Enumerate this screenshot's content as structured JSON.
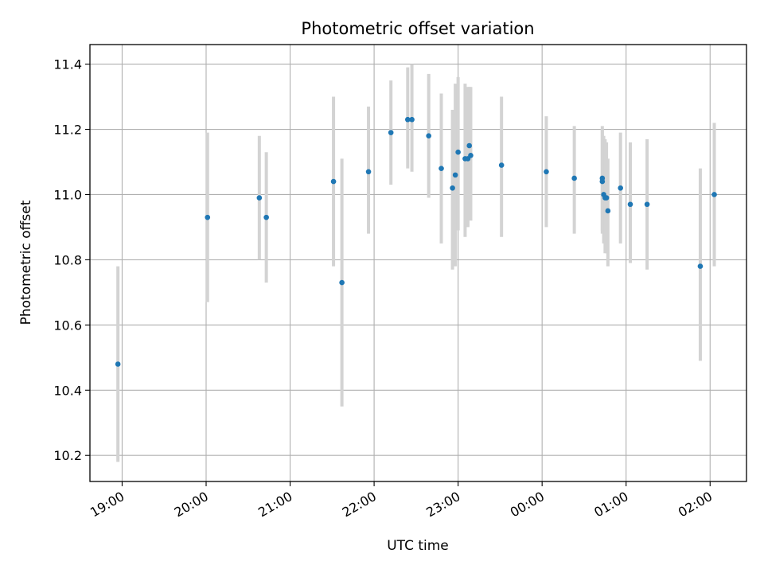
{
  "chart_data": {
    "type": "scatter",
    "title": "Photometric offset variation",
    "xlabel": "UTC time",
    "ylabel": "Photometric offset",
    "x_unit": "time_of_day",
    "xlim": [
      "18:37",
      "02:26"
    ],
    "ylim": [
      10.12,
      11.46
    ],
    "x_ticks": [
      "19:00",
      "20:00",
      "21:00",
      "22:00",
      "23:00",
      "00:00",
      "01:00",
      "02:00"
    ],
    "y_ticks": [
      "10.2",
      "10.4",
      "10.6",
      "10.8",
      "11.0",
      "11.2",
      "11.4"
    ],
    "grid": true,
    "colors": {
      "point": "#1f77b4",
      "errorbar": "#d3d3d3",
      "grid": "#b0b0b0"
    },
    "series": [
      {
        "points": [
          {
            "x": "18:57",
            "y": 10.48,
            "ymin": 10.18,
            "ymax": 10.78
          },
          {
            "x": "20:01",
            "y": 10.93,
            "ymin": 10.67,
            "ymax": 11.19
          },
          {
            "x": "20:38",
            "y": 10.99,
            "ymin": 10.8,
            "ymax": 11.18
          },
          {
            "x": "20:43",
            "y": 10.93,
            "ymin": 10.73,
            "ymax": 11.13
          },
          {
            "x": "21:31",
            "y": 11.04,
            "ymin": 10.78,
            "ymax": 11.3
          },
          {
            "x": "21:37",
            "y": 10.73,
            "ymin": 10.35,
            "ymax": 11.11
          },
          {
            "x": "21:56",
            "y": 11.07,
            "ymin": 10.88,
            "ymax": 11.27
          },
          {
            "x": "22:12",
            "y": 11.19,
            "ymin": 11.03,
            "ymax": 11.35
          },
          {
            "x": "22:24",
            "y": 11.23,
            "ymin": 11.08,
            "ymax": 11.39
          },
          {
            "x": "22:27",
            "y": 11.23,
            "ymin": 11.07,
            "ymax": 11.4
          },
          {
            "x": "22:39",
            "y": 11.18,
            "ymin": 10.99,
            "ymax": 11.37
          },
          {
            "x": "22:48",
            "y": 11.08,
            "ymin": 10.85,
            "ymax": 11.31
          },
          {
            "x": "22:56",
            "y": 11.02,
            "ymin": 10.77,
            "ymax": 11.26
          },
          {
            "x": "22:58",
            "y": 11.06,
            "ymin": 10.78,
            "ymax": 11.34
          },
          {
            "x": "23:00",
            "y": 11.13,
            "ymin": 10.89,
            "ymax": 11.36
          },
          {
            "x": "23:05",
            "y": 11.11,
            "ymin": 10.87,
            "ymax": 11.34
          },
          {
            "x": "23:07",
            "y": 11.11,
            "ymin": 10.9,
            "ymax": 11.33
          },
          {
            "x": "23:08",
            "y": 11.15,
            "ymin": 10.96,
            "ymax": 11.33
          },
          {
            "x": "23:09",
            "y": 11.12,
            "ymin": 10.92,
            "ymax": 11.33
          },
          {
            "x": "23:31",
            "y": 11.09,
            "ymin": 10.87,
            "ymax": 11.3
          },
          {
            "x": "00:03",
            "y": 11.07,
            "ymin": 10.9,
            "ymax": 11.24
          },
          {
            "x": "00:23",
            "y": 11.05,
            "ymin": 10.88,
            "ymax": 11.21
          },
          {
            "x": "00:43",
            "y": 11.05,
            "ymin": 10.88,
            "ymax": 11.21
          },
          {
            "x": "00:43",
            "y": 11.04,
            "ymin": 10.89,
            "ymax": 11.2
          },
          {
            "x": "00:44",
            "y": 11.0,
            "ymin": 10.85,
            "ymax": 11.18
          },
          {
            "x": "00:45",
            "y": 10.99,
            "ymin": 10.82,
            "ymax": 11.17
          },
          {
            "x": "00:46",
            "y": 10.99,
            "ymin": 10.82,
            "ymax": 11.16
          },
          {
            "x": "00:47",
            "y": 10.95,
            "ymin": 10.78,
            "ymax": 11.11
          },
          {
            "x": "00:56",
            "y": 11.02,
            "ymin": 10.85,
            "ymax": 11.19
          },
          {
            "x": "01:03",
            "y": 10.97,
            "ymin": 10.79,
            "ymax": 11.16
          },
          {
            "x": "01:15",
            "y": 10.97,
            "ymin": 10.77,
            "ymax": 11.17
          },
          {
            "x": "01:53",
            "y": 10.78,
            "ymin": 10.49,
            "ymax": 11.08
          },
          {
            "x": "02:03",
            "y": 11.0,
            "ymin": 10.78,
            "ymax": 11.22
          }
        ]
      }
    ]
  }
}
